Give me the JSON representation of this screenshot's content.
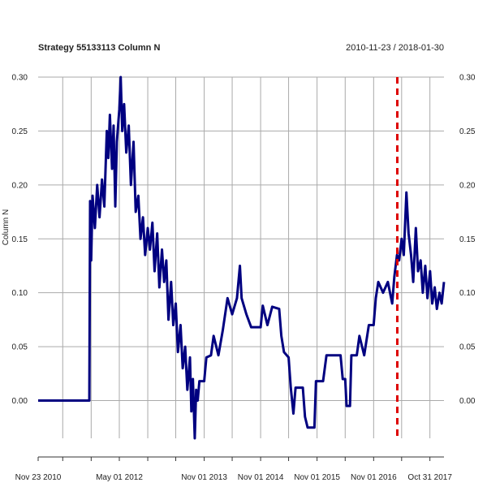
{
  "chart_data": {
    "type": "line",
    "title": "Strategy 55133113 Column N",
    "date_range_label": "2010-11-23 / 2018-01-30",
    "ylabel": "Column N",
    "xlabel": "",
    "xlim": [
      "2010-11-23",
      "2018-01-30"
    ],
    "ylim": [
      -0.035,
      0.3
    ],
    "yticks": [
      "0.00",
      "0.05",
      "0.10",
      "0.15",
      "0.20",
      "0.25",
      "0.30"
    ],
    "xtick_labels": [
      {
        "date": "2010-11-23",
        "label": "Nov 23 2010"
      },
      {
        "date": "2012-05-01",
        "label": "May 01 2012"
      },
      {
        "date": "2013-11-01",
        "label": "Nov 01 2013"
      },
      {
        "date": "2014-11-01",
        "label": "Nov 01 2014"
      },
      {
        "date": "2015-11-01",
        "label": "Nov 01 2015"
      },
      {
        "date": "2016-11-01",
        "label": "Nov 01 2016"
      },
      {
        "date": "2017-10-31",
        "label": "Oct 31 2017"
      }
    ],
    "vgrid_dates": [
      "2011-05-01",
      "2011-11-01",
      "2012-05-01",
      "2012-11-01",
      "2013-05-01",
      "2013-11-01",
      "2014-05-01",
      "2014-11-01",
      "2015-05-01",
      "2015-11-01",
      "2016-05-01",
      "2016-11-01",
      "2017-05-01",
      "2017-10-31"
    ],
    "grid": true,
    "marker_line": {
      "date": "2017-04-03",
      "color": "#dd0000",
      "style": "dashed"
    },
    "series": [
      {
        "color": "#000080",
        "points": [
          [
            "2010-11-23",
            0.0
          ],
          [
            "2011-10-20",
            0.0
          ],
          [
            "2011-10-25",
            0.185
          ],
          [
            "2011-11-01",
            0.13
          ],
          [
            "2011-11-10",
            0.19
          ],
          [
            "2011-11-25",
            0.16
          ],
          [
            "2011-12-10",
            0.2
          ],
          [
            "2011-12-25",
            0.17
          ],
          [
            "2012-01-10",
            0.205
          ],
          [
            "2012-01-25",
            0.18
          ],
          [
            "2012-02-10",
            0.25
          ],
          [
            "2012-02-20",
            0.225
          ],
          [
            "2012-03-01",
            0.265
          ],
          [
            "2012-03-15",
            0.215
          ],
          [
            "2012-03-25",
            0.255
          ],
          [
            "2012-04-05",
            0.18
          ],
          [
            "2012-04-15",
            0.24
          ],
          [
            "2012-05-01",
            0.27
          ],
          [
            "2012-05-10",
            0.3
          ],
          [
            "2012-05-20",
            0.25
          ],
          [
            "2012-06-01",
            0.275
          ],
          [
            "2012-06-15",
            0.23
          ],
          [
            "2012-07-01",
            0.255
          ],
          [
            "2012-07-15",
            0.2
          ],
          [
            "2012-08-01",
            0.24
          ],
          [
            "2012-08-15",
            0.175
          ],
          [
            "2012-09-01",
            0.19
          ],
          [
            "2012-09-15",
            0.15
          ],
          [
            "2012-10-01",
            0.17
          ],
          [
            "2012-10-15",
            0.135
          ],
          [
            "2012-11-01",
            0.16
          ],
          [
            "2012-11-15",
            0.14
          ],
          [
            "2012-12-01",
            0.165
          ],
          [
            "2012-12-15",
            0.12
          ],
          [
            "2013-01-01",
            0.155
          ],
          [
            "2013-01-15",
            0.105
          ],
          [
            "2013-02-01",
            0.14
          ],
          [
            "2013-02-15",
            0.11
          ],
          [
            "2013-03-01",
            0.13
          ],
          [
            "2013-03-15",
            0.075
          ],
          [
            "2013-04-01",
            0.11
          ],
          [
            "2013-04-15",
            0.07
          ],
          [
            "2013-05-01",
            0.09
          ],
          [
            "2013-05-15",
            0.045
          ],
          [
            "2013-06-01",
            0.07
          ],
          [
            "2013-06-15",
            0.03
          ],
          [
            "2013-07-01",
            0.05
          ],
          [
            "2013-07-15",
            0.01
          ],
          [
            "2013-08-01",
            0.04
          ],
          [
            "2013-08-10",
            -0.01
          ],
          [
            "2013-08-20",
            0.02
          ],
          [
            "2013-09-01",
            -0.035
          ],
          [
            "2013-09-10",
            0.01
          ],
          [
            "2013-09-20",
            0.0
          ],
          [
            "2013-10-01",
            0.018
          ],
          [
            "2013-11-01",
            0.018
          ],
          [
            "2013-11-15",
            0.04
          ],
          [
            "2013-12-15",
            0.042
          ],
          [
            "2014-01-01",
            0.06
          ],
          [
            "2014-02-01",
            0.042
          ],
          [
            "2014-03-01",
            0.065
          ],
          [
            "2014-04-01",
            0.095
          ],
          [
            "2014-05-01",
            0.08
          ],
          [
            "2014-06-01",
            0.095
          ],
          [
            "2014-06-20",
            0.125
          ],
          [
            "2014-07-01",
            0.095
          ],
          [
            "2014-08-01",
            0.08
          ],
          [
            "2014-09-01",
            0.068
          ],
          [
            "2014-11-01",
            0.068
          ],
          [
            "2014-11-15",
            0.088
          ],
          [
            "2014-12-15",
            0.07
          ],
          [
            "2015-01-15",
            0.087
          ],
          [
            "2015-03-01",
            0.085
          ],
          [
            "2015-03-15",
            0.06
          ],
          [
            "2015-04-01",
            0.045
          ],
          [
            "2015-05-01",
            0.04
          ],
          [
            "2015-05-15",
            0.012
          ],
          [
            "2015-06-01",
            -0.012
          ],
          [
            "2015-06-15",
            0.012
          ],
          [
            "2015-08-01",
            0.012
          ],
          [
            "2015-08-15",
            -0.015
          ],
          [
            "2015-09-01",
            -0.025
          ],
          [
            "2015-10-15",
            -0.025
          ],
          [
            "2015-10-25",
            0.018
          ],
          [
            "2015-12-10",
            0.018
          ],
          [
            "2016-01-01",
            0.042
          ],
          [
            "2016-04-01",
            0.042
          ],
          [
            "2016-04-15",
            0.02
          ],
          [
            "2016-05-01",
            0.02
          ],
          [
            "2016-05-10",
            -0.005
          ],
          [
            "2016-06-01",
            -0.005
          ],
          [
            "2016-06-10",
            0.042
          ],
          [
            "2016-07-15",
            0.042
          ],
          [
            "2016-08-01",
            0.06
          ],
          [
            "2016-09-01",
            0.042
          ],
          [
            "2016-10-01",
            0.07
          ],
          [
            "2016-11-01",
            0.07
          ],
          [
            "2016-11-15",
            0.095
          ],
          [
            "2016-12-01",
            0.11
          ],
          [
            "2017-01-01",
            0.1
          ],
          [
            "2017-02-01",
            0.11
          ],
          [
            "2017-03-01",
            0.09
          ],
          [
            "2017-03-15",
            0.115
          ],
          [
            "2017-04-01",
            0.135
          ],
          [
            "2017-04-15",
            0.13
          ],
          [
            "2017-05-01",
            0.15
          ],
          [
            "2017-05-15",
            0.135
          ],
          [
            "2017-06-01",
            0.193
          ],
          [
            "2017-06-15",
            0.155
          ],
          [
            "2017-07-01",
            0.135
          ],
          [
            "2017-07-15",
            0.11
          ],
          [
            "2017-08-01",
            0.16
          ],
          [
            "2017-08-15",
            0.12
          ],
          [
            "2017-09-01",
            0.13
          ],
          [
            "2017-09-15",
            0.1
          ],
          [
            "2017-10-01",
            0.125
          ],
          [
            "2017-10-15",
            0.095
          ],
          [
            "2017-11-01",
            0.12
          ],
          [
            "2017-11-15",
            0.09
          ],
          [
            "2017-12-01",
            0.105
          ],
          [
            "2017-12-15",
            0.085
          ],
          [
            "2018-01-01",
            0.1
          ],
          [
            "2018-01-15",
            0.09
          ],
          [
            "2018-01-30",
            0.11
          ]
        ]
      }
    ]
  }
}
